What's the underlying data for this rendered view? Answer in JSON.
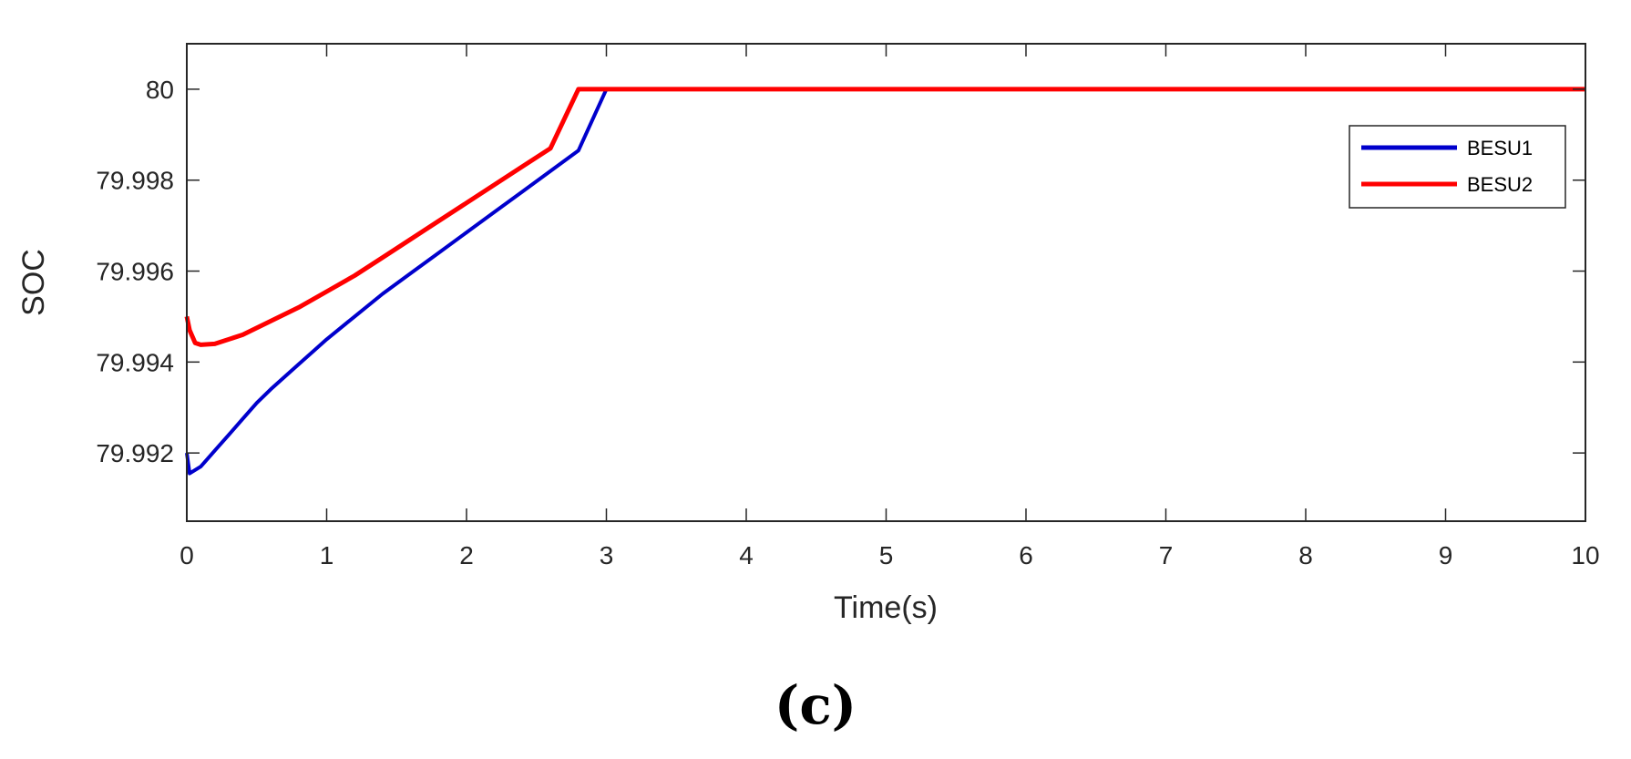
{
  "panel_label": "(c)",
  "chart_data": {
    "type": "line",
    "title": "",
    "xlabel": "Time(s)",
    "ylabel": "SOC",
    "xlim": [
      0,
      10
    ],
    "ylim": [
      79.9905,
      80.001
    ],
    "xticks": [
      0,
      1,
      2,
      3,
      4,
      5,
      6,
      7,
      8,
      9,
      10
    ],
    "xtick_labels": [
      "0",
      "1",
      "2",
      "3",
      "4",
      "5",
      "6",
      "7",
      "8",
      "9",
      "10"
    ],
    "yticks": [
      79.992,
      79.994,
      79.996,
      79.998,
      80.0
    ],
    "ytick_labels": [
      "79.992",
      "79.994",
      "79.996",
      "79.998",
      "80"
    ],
    "grid": false,
    "legend_position": "top-right",
    "series": [
      {
        "name": "BESU1",
        "color": "#0000cc",
        "points": [
          [
            0,
            79.992
          ],
          [
            0.02,
            79.99155
          ],
          [
            0.1,
            79.9917
          ],
          [
            0.2,
            79.99205
          ],
          [
            0.3,
            79.9924
          ],
          [
            0.4,
            79.99275
          ],
          [
            0.5,
            79.9931
          ],
          [
            0.6,
            79.9934
          ],
          [
            0.8,
            79.99395
          ],
          [
            1.0,
            79.9945
          ],
          [
            1.2,
            79.995
          ],
          [
            1.4,
            79.9955
          ],
          [
            1.6,
            79.99595
          ],
          [
            1.8,
            79.9964
          ],
          [
            2.0,
            79.99685
          ],
          [
            2.2,
            79.9973
          ],
          [
            2.4,
            79.99775
          ],
          [
            2.6,
            79.9982
          ],
          [
            2.8,
            79.99865
          ],
          [
            3.0,
            80.0
          ],
          [
            10.0,
            80.0
          ]
        ]
      },
      {
        "name": "BESU2",
        "color": "#ff0000",
        "points": [
          [
            0,
            79.995
          ],
          [
            0.02,
            79.9947
          ],
          [
            0.06,
            79.99442
          ],
          [
            0.1,
            79.99438
          ],
          [
            0.2,
            79.9944
          ],
          [
            0.4,
            79.9946
          ],
          [
            0.6,
            79.9949
          ],
          [
            0.8,
            79.9952
          ],
          [
            1.0,
            79.99555
          ],
          [
            1.2,
            79.9959
          ],
          [
            1.4,
            79.9963
          ],
          [
            1.6,
            79.9967
          ],
          [
            1.8,
            79.9971
          ],
          [
            2.0,
            79.9975
          ],
          [
            2.2,
            79.9979
          ],
          [
            2.4,
            79.9983
          ],
          [
            2.6,
            79.9987
          ],
          [
            2.8,
            80.0
          ],
          [
            10.0,
            80.0
          ]
        ]
      }
    ]
  }
}
